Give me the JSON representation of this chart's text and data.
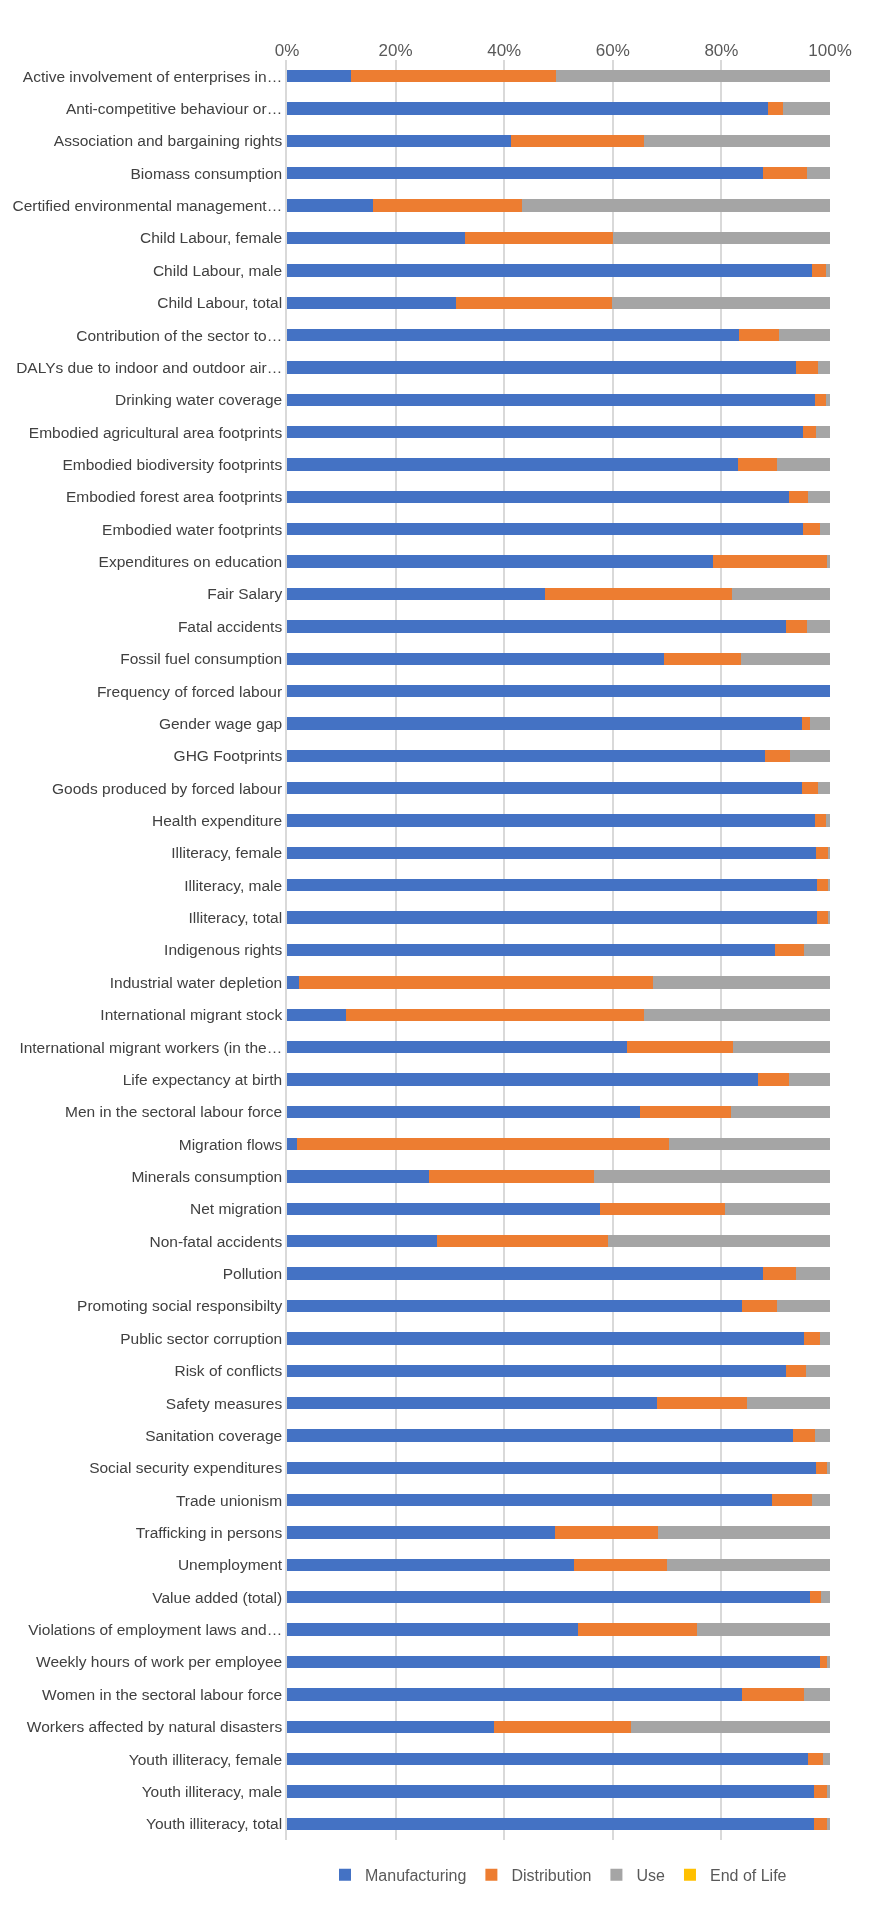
{
  "chart_data": {
    "type": "bar",
    "orientation": "horizontal",
    "stacked": true,
    "categories": [
      "Active involvement of enterprises in…",
      "Anti-competitive behaviour or…",
      "Association and bargaining rights",
      "Biomass consumption",
      "Certified environmental management…",
      "Child Labour, female",
      "Child Labour, male",
      "Child Labour, total",
      "Contribution of the sector to…",
      "DALYs due to indoor and outdoor air…",
      "Drinking water coverage",
      "Embodied agricultural area footprints",
      "Embodied biodiversity footprints",
      "Embodied forest area footprints",
      "Embodied water footprints",
      "Expenditures on education",
      "Fair Salary",
      "Fatal accidents",
      "Fossil fuel consumption",
      "Frequency of forced labour",
      "Gender wage gap",
      "GHG Footprints",
      "Goods produced by forced labour",
      "Health expenditure",
      "Illiteracy, female",
      "Illiteracy, male",
      "Illiteracy, total",
      "Indigenous rights",
      "Industrial water depletion",
      "International migrant stock",
      "International migrant workers (in the…",
      "Life expectancy at birth",
      "Men in the sectoral labour force",
      "Migration flows",
      "Minerals consumption",
      "Net migration",
      "Non-fatal accidents",
      "Pollution",
      "Promoting social responsibilty",
      "Public sector corruption",
      "Risk of conflicts",
      "Safety measures",
      "Sanitation coverage",
      "Social security expenditures",
      "Trade unionism",
      "Trafficking in persons",
      "Unemployment",
      "Value added (total)",
      "Violations of employment laws and…",
      "Weekly hours of work per employee",
      "Women in the sectoral labour force",
      "Workers affected by natural disasters",
      "Youth illiteracy, female",
      "Youth illiteracy, male",
      "Youth illiteracy, total"
    ],
    "series": [
      {
        "name": "Manufacturing",
        "color": "#4472c4",
        "values": [
          11.7,
          88.5,
          41.3,
          87.7,
          15.8,
          32.8,
          96.7,
          31.1,
          83.3,
          93.7,
          97.2,
          95.0,
          83.1,
          92.4,
          95.0,
          78.4,
          47.6,
          91.9,
          69.4,
          100,
          94.8,
          88.0,
          94.8,
          97.2,
          97.5,
          97.6,
          97.6,
          89.9,
          2.3,
          10.8,
          62.6,
          86.7,
          65.0,
          1.8,
          26.2,
          57.7,
          27.7,
          87.7,
          83.8,
          95.3,
          91.9,
          68.2,
          93.2,
          97.4,
          89.4,
          49.3,
          52.8,
          96.3,
          53.5,
          98.1,
          83.8,
          38.2,
          95.9,
          97.0,
          97.0
        ]
      },
      {
        "name": "Distribution",
        "color": "#ed7d31",
        "values": [
          37.9,
          2.8,
          24.4,
          8.0,
          27.5,
          27.3,
          2.5,
          28.8,
          7.3,
          4.1,
          2.0,
          2.5,
          7.1,
          3.5,
          3.2,
          21.0,
          34.3,
          3.8,
          14.3,
          0,
          1.5,
          4.6,
          2.9,
          2.1,
          2.1,
          2.0,
          2.0,
          5.4,
          65.1,
          54.9,
          19.5,
          5.7,
          16.8,
          68.6,
          30.3,
          22.9,
          31.4,
          6.1,
          6.4,
          2.9,
          3.6,
          16.6,
          4.0,
          2.0,
          7.3,
          19.1,
          17.1,
          2.1,
          22.0,
          1.3,
          11.5,
          25.1,
          2.9,
          2.4,
          2.4
        ]
      },
      {
        "name": "Use",
        "color": "#a5a5a5",
        "values": [
          50.4,
          8.7,
          34.3,
          4.3,
          56.7,
          39.9,
          0.8,
          40.1,
          9.4,
          2.2,
          0.8,
          2.5,
          9.8,
          4.1,
          1.8,
          0.6,
          18.1,
          4.3,
          16.3,
          0,
          3.7,
          7.4,
          2.3,
          0.7,
          0.4,
          0.4,
          0.4,
          4.7,
          32.6,
          34.3,
          17.9,
          7.6,
          18.2,
          29.6,
          43.5,
          19.4,
          40.9,
          6.2,
          9.8,
          1.8,
          4.5,
          15.2,
          2.8,
          0.6,
          3.3,
          31.6,
          30.1,
          1.6,
          24.5,
          0.6,
          4.7,
          36.7,
          1.2,
          0.6,
          0.6
        ]
      },
      {
        "name": "End of Life",
        "color": "#ffc000",
        "values": [
          0,
          0,
          0,
          0,
          0,
          0,
          0,
          0,
          0,
          0,
          0,
          0,
          0,
          0,
          0,
          0,
          0,
          0,
          0,
          0,
          0,
          0,
          0,
          0,
          0,
          0,
          0,
          0,
          0,
          0,
          0,
          0,
          0,
          0,
          0,
          0,
          0,
          0,
          0,
          0,
          0,
          0,
          0,
          0,
          0,
          0,
          0,
          0,
          0,
          0,
          0,
          0,
          0,
          0,
          0
        ]
      }
    ],
    "xlim": [
      0,
      100
    ],
    "xticks": [
      {
        "value": 0,
        "label": "0%"
      },
      {
        "value": 20,
        "label": "20%"
      },
      {
        "value": 40,
        "label": "40%"
      },
      {
        "value": 60,
        "label": "60%"
      },
      {
        "value": 80,
        "label": "80%"
      },
      {
        "value": 100,
        "label": "100%"
      }
    ],
    "grid": "x",
    "legend": "bottom"
  }
}
